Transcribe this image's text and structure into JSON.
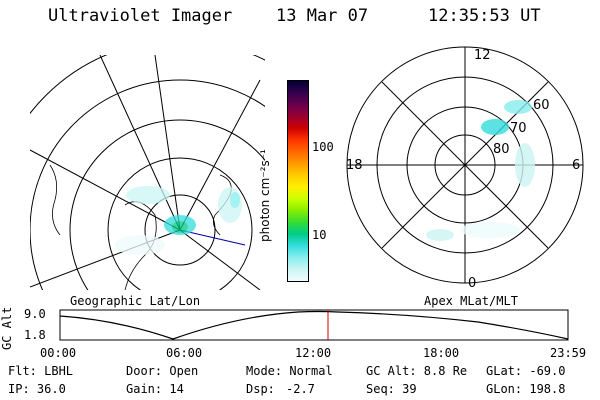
{
  "header": {
    "instrument": "Ultraviolet Imager",
    "date": "13 Mar 07",
    "time": "12:35:53 UT"
  },
  "colorbar": {
    "label": "photon cm⁻²s⁻¹",
    "ticks": [
      "100",
      "10"
    ],
    "colors": [
      "#000033",
      "#33004d",
      "#66004d",
      "#990033",
      "#cc0000",
      "#ff3300",
      "#ff6600",
      "#ff9900",
      "#ffcc00",
      "#ffee00",
      "#ccff00",
      "#88ee00",
      "#33dd33",
      "#00cc88",
      "#33dddd",
      "#88eeee",
      "#ccf5f5",
      "#eefcfc"
    ]
  },
  "left_map": {
    "label": "Geographic Lat/Lon"
  },
  "right_map": {
    "label": "Apex MLat/MLT",
    "mlt_labels": {
      "top": "12",
      "left": "18",
      "right": "6",
      "bottom": "0"
    },
    "lat_labels": [
      "60",
      "70",
      "80"
    ]
  },
  "altitude_plot": {
    "ylabel": "GC Alt",
    "y_ticks": [
      "9.0",
      "1.8"
    ],
    "x_ticks": [
      "00:00",
      "06:00",
      "12:00",
      "18:00",
      "23:59"
    ],
    "current_time_color": "#cc0000"
  },
  "info": {
    "row1": {
      "filter": "Flt: LBHL",
      "door": "Door: Open",
      "mode": "Mode: Normal",
      "gc_alt": "GC Alt: 8.8 Re",
      "glat": "GLat: -69.0"
    },
    "row2": {
      "ip": "IP: 36.0",
      "gain": "Gain: 14",
      "dsp_label": "Dsp:",
      "dsp_value": "-2.7",
      "seq": "Seq: 39",
      "glon": "GLon: 198.8"
    }
  }
}
